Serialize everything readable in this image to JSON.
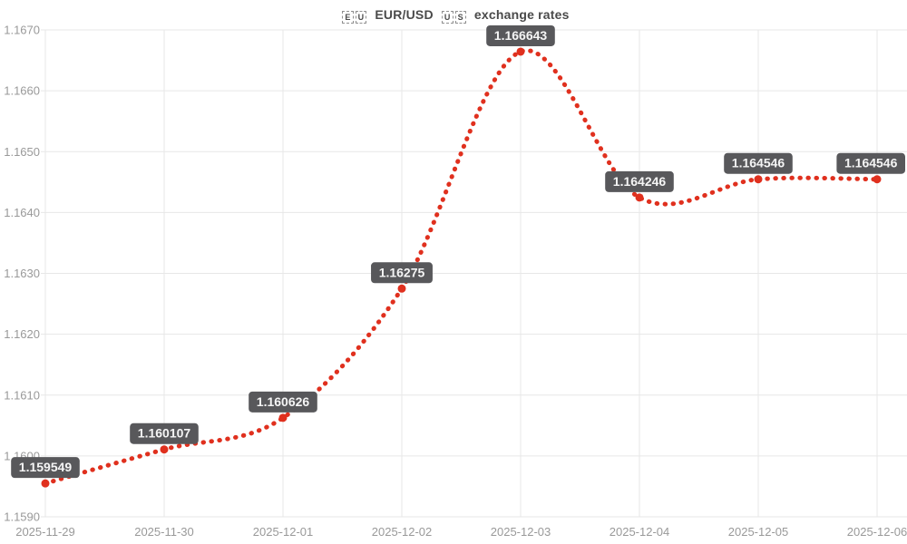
{
  "title": {
    "flag_eu": {
      "l1": "E",
      "l2": "U"
    },
    "pair": "EUR/USD",
    "flag_us": {
      "l1": "U",
      "l2": "S"
    },
    "suffix": "exchange rates"
  },
  "chart_data": {
    "type": "line",
    "title": "EU EUR/USD US exchange rates",
    "x": [
      "2025-11-29",
      "2025-11-30",
      "2025-12-01",
      "2025-12-02",
      "2025-12-03",
      "2025-12-04",
      "2025-12-05",
      "2025-12-06"
    ],
    "series": [
      {
        "name": "EUR/USD",
        "values": [
          1.159549,
          1.160107,
          1.160626,
          1.16275,
          1.166643,
          1.164246,
          1.164546,
          1.164546
        ]
      }
    ],
    "point_labels": [
      "1.159549",
      "1.160107",
      "1.160626",
      "1.16275",
      "1.166643",
      "1.164246",
      "1.164546",
      "1.164546"
    ],
    "ylim": [
      1.159,
      1.167
    ],
    "ytick_values": [
      1.159,
      1.16,
      1.161,
      1.162,
      1.163,
      1.164,
      1.165,
      1.166,
      1.167
    ],
    "ytick_labels": [
      "1.1590",
      "1.1600",
      "1.1610",
      "1.1620",
      "1.1630",
      "1.1640",
      "1.1650",
      "1.1660",
      "1.1670"
    ],
    "grid": true,
    "legend": "none",
    "line_style": "dotted",
    "colors": {
      "line": "#e0301e",
      "point": "#e0301e",
      "label_bg": "#58585b",
      "label_text": "#f5f5f5",
      "grid": "#e7e7e7",
      "axis_text": "#999999",
      "title_text": "#4a4a4a"
    }
  }
}
